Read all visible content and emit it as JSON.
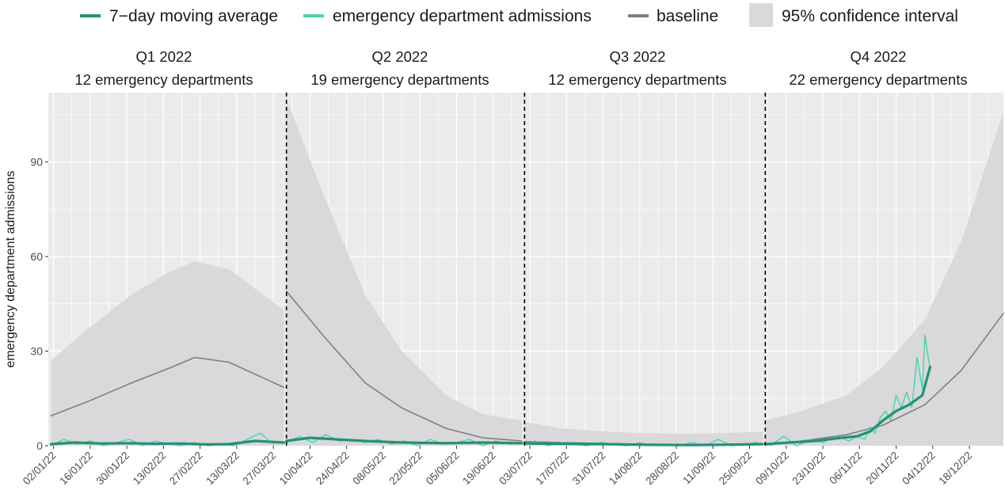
{
  "chart_data": {
    "type": "line",
    "ylabel": "emergency department admissions",
    "xlabel": "",
    "ylim": [
      0,
      112
    ],
    "yticks": [
      0,
      30,
      60,
      90
    ],
    "xlim": [
      "2021-12-31",
      "2022-12-31"
    ],
    "x_tick_labels": [
      "02/01/22",
      "16/01/22",
      "30/01/22",
      "13/02/22",
      "27/02/22",
      "13/03/22",
      "27/03/22",
      "10/04/22",
      "24/04/22",
      "08/05/22",
      "22/05/22",
      "05/06/22",
      "19/06/22",
      "03/07/22",
      "17/07/22",
      "31/07/22",
      "14/08/22",
      "28/08/22",
      "11/09/22",
      "25/09/22",
      "09/10/22",
      "23/10/22",
      "06/11/22",
      "20/11/22",
      "04/12/22",
      "18/12/22"
    ],
    "x_tick_dates": [
      "2022-01-02",
      "2022-01-16",
      "2022-01-30",
      "2022-02-13",
      "2022-02-27",
      "2022-03-13",
      "2022-03-27",
      "2022-04-10",
      "2022-04-24",
      "2022-05-08",
      "2022-05-22",
      "2022-06-05",
      "2022-06-19",
      "2022-07-03",
      "2022-07-17",
      "2022-07-31",
      "2022-08-14",
      "2022-08-28",
      "2022-09-11",
      "2022-09-25",
      "2022-10-09",
      "2022-10-23",
      "2022-11-06",
      "2022-11-20",
      "2022-12-04",
      "2022-12-18"
    ],
    "legend": {
      "placement": "top",
      "items": [
        {
          "label": "7−day moving average",
          "color": "#23917a",
          "kind": "line"
        },
        {
          "label": "emergency department admissions",
          "color": "#48d1b0",
          "kind": "line"
        },
        {
          "label": "baseline",
          "color": "#7f7f7f",
          "kind": "line"
        },
        {
          "label": "95% confidence interval",
          "color": "#d9d9d9",
          "kind": "box"
        }
      ]
    },
    "quarters": [
      {
        "label": "Q1 2022",
        "subtitle": "12 emergency departments",
        "start": "2022-01-01",
        "end": "2022-03-31"
      },
      {
        "label": "Q2 2022",
        "subtitle": "19 emergency departments",
        "start": "2022-04-01",
        "end": "2022-06-30"
      },
      {
        "label": "Q3 2022",
        "subtitle": "12 emergency departments",
        "start": "2022-07-01",
        "end": "2022-09-30"
      },
      {
        "label": "Q4 2022",
        "subtitle": "22 emergency departments",
        "start": "2022-10-01",
        "end": "2022-12-31"
      }
    ],
    "boundaries": [
      "2022-04-01",
      "2022-07-01",
      "2022-10-01"
    ],
    "series": [
      {
        "name": "baseline",
        "color": "#7f7f7f",
        "x": [
          "2022-01-01",
          "2022-01-15",
          "2022-02-01",
          "2022-02-15",
          "2022-02-25",
          "2022-03-10",
          "2022-03-31",
          "2022-04-01",
          "2022-04-15",
          "2022-05-01",
          "2022-05-15",
          "2022-06-01",
          "2022-06-15",
          "2022-06-30",
          "2022-07-01",
          "2022-07-15",
          "2022-08-01",
          "2022-08-15",
          "2022-09-01",
          "2022-09-15",
          "2022-09-30",
          "2022-10-01",
          "2022-10-15",
          "2022-11-01",
          "2022-11-15",
          "2022-12-01",
          "2022-12-15",
          "2022-12-31"
        ],
        "values": [
          9.5,
          14,
          20,
          24.5,
          28,
          26.5,
          18.5,
          49,
          35,
          20,
          12,
          5.5,
          2.5,
          1.5,
          1.3,
          1,
          0.7,
          0.5,
          0.4,
          0.4,
          0.4,
          0.4,
          1.5,
          3.5,
          6.5,
          13,
          24,
          42
        ]
      },
      {
        "name": "95% confidence interval upper",
        "color": "#d9d9d9",
        "x": [
          "2022-01-01",
          "2022-01-15",
          "2022-02-01",
          "2022-02-15",
          "2022-02-25",
          "2022-03-10",
          "2022-03-31",
          "2022-04-01",
          "2022-04-15",
          "2022-05-01",
          "2022-05-15",
          "2022-06-01",
          "2022-06-15",
          "2022-06-30",
          "2022-07-01",
          "2022-07-15",
          "2022-08-01",
          "2022-08-15",
          "2022-09-01",
          "2022-09-15",
          "2022-09-30",
          "2022-10-01",
          "2022-10-15",
          "2022-11-01",
          "2022-11-15",
          "2022-12-01",
          "2022-12-15",
          "2022-12-31"
        ],
        "values": [
          27,
          37,
          48,
          55,
          58.5,
          56,
          43,
          110,
          80,
          48,
          30,
          16,
          10,
          8,
          7.5,
          5.5,
          4.5,
          4,
          3.8,
          4,
          4.5,
          8,
          11,
          16,
          25,
          40,
          65,
          106
        ]
      },
      {
        "name": "7−day moving average",
        "color": "#23917a",
        "x": [
          "2022-01-01",
          "2022-01-10",
          "2022-01-20",
          "2022-02-01",
          "2022-02-10",
          "2022-02-20",
          "2022-03-01",
          "2022-03-10",
          "2022-03-20",
          "2022-03-31",
          "2022-04-01",
          "2022-04-10",
          "2022-04-20",
          "2022-05-01",
          "2022-05-15",
          "2022-06-01",
          "2022-06-15",
          "2022-06-30",
          "2022-07-01",
          "2022-07-15",
          "2022-08-01",
          "2022-08-15",
          "2022-09-01",
          "2022-09-15",
          "2022-09-30",
          "2022-10-01",
          "2022-10-10",
          "2022-10-20",
          "2022-10-30",
          "2022-11-05",
          "2022-11-10",
          "2022-11-15",
          "2022-11-20",
          "2022-11-25",
          "2022-11-30",
          "2022-12-03"
        ],
        "values": [
          0.5,
          1,
          0.7,
          0.8,
          0.6,
          0.7,
          0.4,
          0.5,
          1.5,
          1,
          1.5,
          2.5,
          2,
          1.5,
          1,
          0.8,
          1,
          0.8,
          0.7,
          0.6,
          0.5,
          0.3,
          0.2,
          0.3,
          0.5,
          0.5,
          1,
          1.5,
          2.5,
          3,
          4.5,
          8,
          11,
          13,
          16,
          25
        ]
      },
      {
        "name": "emergency department admissions",
        "color": "#48d1b0",
        "x": [
          "2022-01-01",
          "2022-01-06",
          "2022-01-11",
          "2022-01-16",
          "2022-01-21",
          "2022-01-26",
          "2022-01-31",
          "2022-02-05",
          "2022-02-10",
          "2022-02-15",
          "2022-02-20",
          "2022-02-25",
          "2022-03-02",
          "2022-03-07",
          "2022-03-12",
          "2022-03-17",
          "2022-03-22",
          "2022-03-27",
          "2022-04-01",
          "2022-04-06",
          "2022-04-11",
          "2022-04-16",
          "2022-04-21",
          "2022-04-26",
          "2022-05-01",
          "2022-05-06",
          "2022-05-11",
          "2022-05-16",
          "2022-05-21",
          "2022-05-26",
          "2022-05-31",
          "2022-06-05",
          "2022-06-10",
          "2022-06-15",
          "2022-06-20",
          "2022-06-25",
          "2022-06-30",
          "2022-07-05",
          "2022-07-10",
          "2022-07-15",
          "2022-07-20",
          "2022-07-25",
          "2022-07-30",
          "2022-08-04",
          "2022-08-09",
          "2022-08-14",
          "2022-08-19",
          "2022-08-24",
          "2022-08-29",
          "2022-09-03",
          "2022-09-08",
          "2022-09-13",
          "2022-09-18",
          "2022-09-23",
          "2022-09-28",
          "2022-10-03",
          "2022-10-08",
          "2022-10-13",
          "2022-10-18",
          "2022-10-23",
          "2022-10-28",
          "2022-11-02",
          "2022-11-05",
          "2022-11-08",
          "2022-11-10",
          "2022-11-12",
          "2022-11-14",
          "2022-11-16",
          "2022-11-18",
          "2022-11-20",
          "2022-11-22",
          "2022-11-24",
          "2022-11-26",
          "2022-11-28",
          "2022-11-30",
          "2022-12-01",
          "2022-12-03"
        ],
        "values": [
          0,
          2,
          0.5,
          1.5,
          0,
          1,
          2,
          0,
          1.5,
          0.5,
          0,
          1,
          0,
          0.5,
          0,
          2,
          4,
          0.5,
          1,
          3,
          1,
          3.5,
          1.5,
          2,
          1,
          2,
          0.5,
          1.5,
          0,
          2,
          0.5,
          1,
          2,
          0,
          1.5,
          0.5,
          1,
          1.5,
          0,
          1,
          0.5,
          0,
          1,
          0.5,
          0,
          1,
          0,
          0.5,
          0,
          1,
          0,
          2,
          0,
          0.5,
          1,
          0,
          3,
          0,
          2,
          1,
          3,
          1.5,
          3,
          2,
          6,
          4,
          9,
          11,
          8,
          16,
          12,
          17,
          12,
          28,
          18,
          35,
          24
        ]
      }
    ]
  }
}
